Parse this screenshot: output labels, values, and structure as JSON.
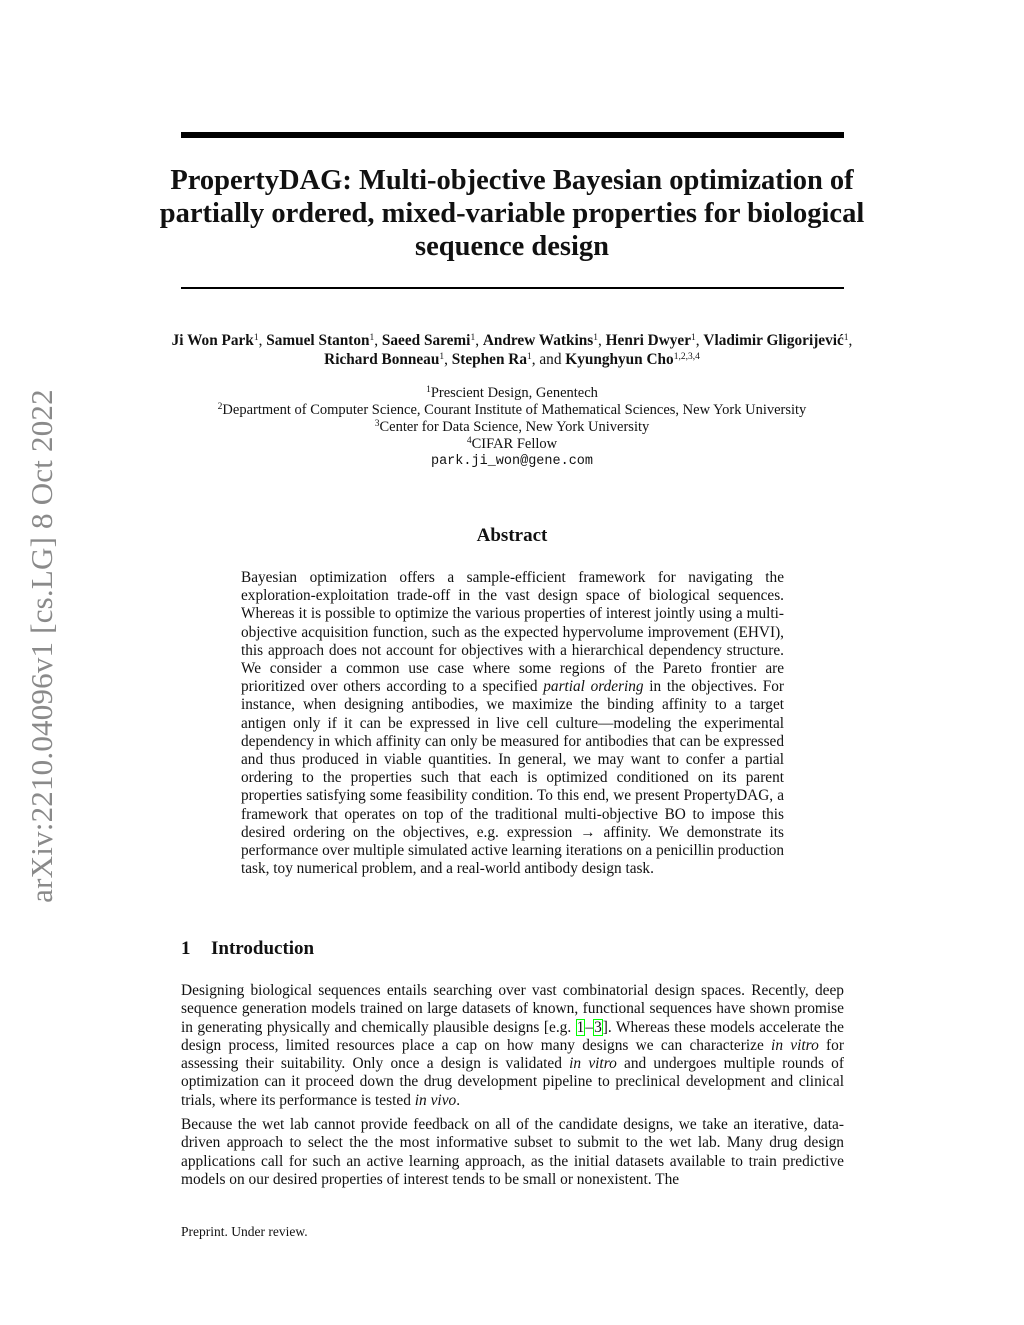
{
  "sidebar_stamp": "arXiv:2210.04096v1  [cs.LG]  8 Oct 2022",
  "title": "PropertyDAG: Multi-objective Bayesian optimization of partially ordered, mixed-variable properties for biological sequence design",
  "authors": [
    {
      "name": "Ji Won Park",
      "sup": "1",
      "sep": ", "
    },
    {
      "name": "Samuel Stanton",
      "sup": "1",
      "sep": ", "
    },
    {
      "name": "Saeed Saremi",
      "sup": "1",
      "sep": ", "
    },
    {
      "name": "Andrew Watkins",
      "sup": "1",
      "sep": ", "
    },
    {
      "name": "Henri Dwyer",
      "sup": "1",
      "sep": ", "
    },
    {
      "name": "Vladimir Gligorijević",
      "sup": "1",
      "sep": ", "
    },
    {
      "name": "Richard Bonneau",
      "sup": "1",
      "sep": ", "
    },
    {
      "name": "Stephen Ra",
      "sup": "1",
      "sep": ", and "
    },
    {
      "name": "Kyunghyun Cho",
      "sup": "1,2,3,4",
      "sep": ""
    }
  ],
  "affiliations": [
    {
      "sup": "1",
      "text": "Prescient Design, Genentech"
    },
    {
      "sup": "2",
      "text": "Department of Computer Science, Courant Institute of Mathematical Sciences, New York University"
    },
    {
      "sup": "3",
      "text": "Center for Data Science, New York University"
    },
    {
      "sup": "4",
      "text": "CIFAR Fellow"
    }
  ],
  "email": "park.ji_won@gene.com",
  "abstract": {
    "heading": "Abstract",
    "segments": [
      "Bayesian optimization offers a sample-efficient framework for navigating the exploration-exploitation trade-off in the vast design space of biological sequences. Whereas it is possible to optimize the various properties of interest jointly using a multi-objective acquisition function, such as the expected hypervolume improvement (EHVI), this approach does not account for objectives with a hierarchical dependency structure. We consider a common use case where some regions of the Pareto frontier are prioritized over others according to a specified ",
      "partial ordering",
      " in the objectives. For instance, when designing antibodies, we maximize the binding affinity to a target antigen only if it can be expressed in live cell culture—modeling the experimental dependency in which affinity can only be measured for antibodies that can be expressed and thus produced in viable quantities. In general, we may want to confer a partial ordering to the properties such that each is optimized conditioned on its parent properties satisfying some feasibility condition. To this end, we present PropertyDAG, a framework that operates on top of the traditional multi-objective BO to impose this desired ordering on the objectives, e.g. expression → affinity. We demonstrate its performance over multiple simulated active learning iterations on a penicillin production task, toy numerical problem, and a real-world antibody design task."
    ]
  },
  "section": {
    "number": "1",
    "title": "Introduction"
  },
  "intro": {
    "p1": [
      "Designing biological sequences entails searching over vast combinatorial design spaces. Recently, deep sequence generation models trained on large datasets of known, functional sequences have shown promise in generating physically and chemically plausible designs [e.g. ",
      "1",
      "–",
      "3",
      "]. Whereas these models accelerate the design process, limited resources place a cap on how many designs we can characterize ",
      "in vitro",
      " for assessing their suitability. Only once a design is validated ",
      "in vitro",
      " and undergoes multiple rounds of optimization can it proceed down the drug development pipeline to preclinical development and clinical trials, where its performance is tested ",
      "in vivo",
      "."
    ],
    "p2": "Because the wet lab cannot provide feedback on all of the candidate designs, we take an iterative, data-driven approach to select the the most informative subset to submit to the wet lab. Many drug design applications call for such an active learning approach, as the initial datasets available to train predictive models on our desired properties of interest tends to be small or nonexistent. The"
  },
  "footer": "Preprint. Under review.",
  "colors": {
    "citation_box": "#00ff00",
    "stamp": "#8a8a8a"
  }
}
